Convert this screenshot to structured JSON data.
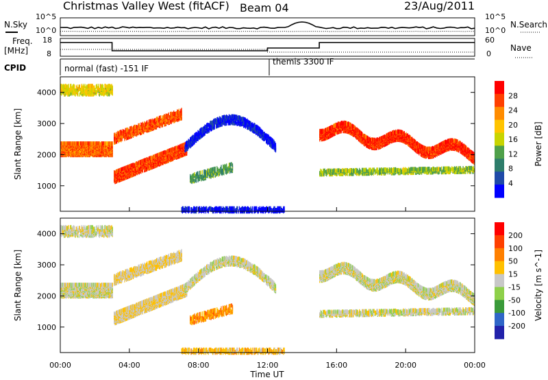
{
  "header": {
    "title": "Christmas Valley West (fitACF)",
    "beam": "Beam 04",
    "date": "23/Aug/2011"
  },
  "left_labels": {
    "nsky": "N.Sky",
    "freq_line1": "Freq.",
    "freq_line2": "[MHz]",
    "cpid": "CPID"
  },
  "right_labels": {
    "nsearch": "N.Search",
    "nave": "Nave"
  },
  "noise_panel": {
    "left_ticks": [
      "10^5",
      "10^0"
    ],
    "right_ticks": [
      "10^5",
      "10^0"
    ]
  },
  "freq_panel": {
    "left_ticks": [
      "18",
      "8"
    ],
    "right_ticks": [
      "60",
      "0"
    ]
  },
  "cpid_panel": {
    "modes": [
      "normal (fast) -151 IF",
      "themis 3300 IF"
    ]
  },
  "colors": {
    "power": [
      "#0000ff",
      "#1f4aa8",
      "#2e7d6b",
      "#4fa04a",
      "#c8d400",
      "#ffc400",
      "#ff8c00",
      "#ff4000",
      "#ff0000"
    ],
    "velocity": [
      "#2222aa",
      "#2f66c8",
      "#3a9a3a",
      "#8ed04a",
      "#c8c8c8",
      "#ffc000",
      "#ff8000",
      "#ff4000",
      "#ff0000"
    ]
  },
  "chart_data": [
    {
      "type": "heatmap",
      "name": "power",
      "xlabel": "",
      "ylabel": "Slant Range [km]",
      "ylim": [
        180,
        4500
      ],
      "y_ticks": [
        "4000",
        "3000",
        "2000",
        "1000"
      ],
      "colorbar_label": "Power [dB]",
      "colorbar_ticks": [
        "28",
        "24",
        "20",
        "16",
        "12",
        "8",
        "4"
      ]
    },
    {
      "type": "heatmap",
      "name": "velocity",
      "xlabel": "Time UT",
      "ylabel": "Slant Range [km]",
      "ylim": [
        180,
        4500
      ],
      "y_ticks": [
        "4000",
        "3000",
        "2000",
        "1000"
      ],
      "x_ticks": [
        "00:00",
        "04:00",
        "08:00",
        "12:00",
        "16:00",
        "20:00",
        "00:00"
      ],
      "colorbar_label": "Velocity [m s^-1]",
      "colorbar_ticks": [
        "200",
        "100",
        "50",
        "15",
        "-15",
        "-50",
        "-100",
        "-200"
      ]
    }
  ]
}
